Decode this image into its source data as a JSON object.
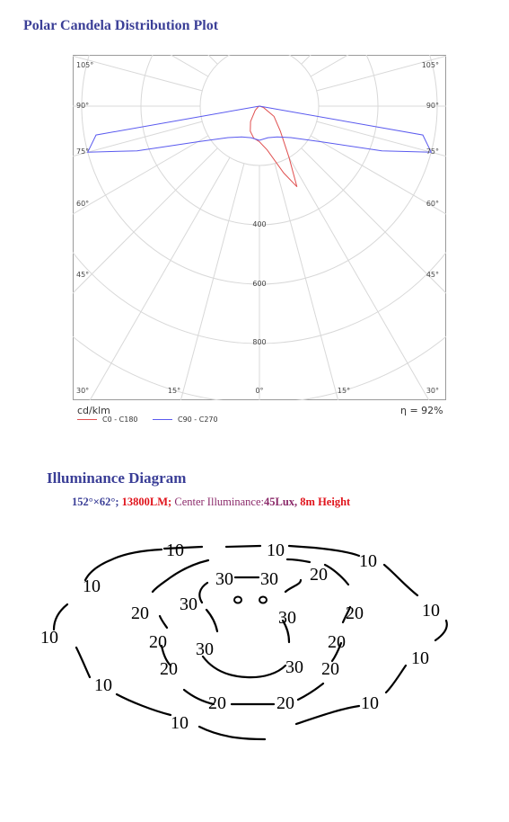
{
  "polar_title": "Polar Candela Distribution Plot",
  "illuminance_title": "Illuminance Diagram",
  "spec": {
    "beam": "152°×62°;",
    "lumen": "13800LM;",
    "center_label": "Center Illuminance:",
    "center_value": "45Lux,",
    "height": "8m Height"
  },
  "chart_data": {
    "type": "polar",
    "unit_label": "cd/klm",
    "efficiency": "η = 92%",
    "radial_ticks": [
      "400",
      "600",
      "800"
    ],
    "angle_labels_left": [
      "105°",
      "90°",
      "75°",
      "60°",
      "45°",
      "30°"
    ],
    "angle_labels_right": [
      "105°",
      "90°",
      "75°",
      "60°",
      "45°",
      "30°"
    ],
    "angle_labels_bottom": [
      "15°",
      "0°",
      "15°"
    ],
    "series": [
      {
        "name": "C0 - C180",
        "color": "#e05050",
        "points": [
          [
            -70,
            0
          ],
          [
            -60,
            5
          ],
          [
            -45,
            20
          ],
          [
            -30,
            60
          ],
          [
            -20,
            90
          ],
          [
            -10,
            110
          ],
          [
            0,
            120
          ],
          [
            10,
            150
          ],
          [
            20,
            240
          ],
          [
            25,
            300
          ],
          [
            30,
            200
          ],
          [
            40,
            110
          ],
          [
            55,
            60
          ],
          [
            70,
            15
          ],
          [
            85,
            2
          ],
          [
            90,
            0
          ]
        ]
      },
      {
        "name": "C90 - C270",
        "color": "#5a5aef",
        "points": [
          [
            -90,
            0
          ],
          [
            -80,
            560
          ],
          [
            -75,
            600
          ],
          [
            -70,
            440
          ],
          [
            -60,
            240
          ],
          [
            -45,
            150
          ],
          [
            -30,
            120
          ],
          [
            -15,
            110
          ],
          [
            0,
            115
          ],
          [
            15,
            110
          ],
          [
            30,
            120
          ],
          [
            45,
            150
          ],
          [
            60,
            240
          ],
          [
            70,
            440
          ],
          [
            75,
            600
          ],
          [
            80,
            560
          ],
          [
            90,
            0
          ]
        ]
      }
    ]
  },
  "isolux": {
    "contour_levels": [
      10,
      20,
      30
    ],
    "labels": [
      {
        "text": "10",
        "ring": "outer"
      },
      {
        "text": "10",
        "ring": "outer"
      },
      {
        "text": "10",
        "ring": "outer"
      },
      {
        "text": "10",
        "ring": "outer"
      },
      {
        "text": "10",
        "ring": "outer"
      },
      {
        "text": "10",
        "ring": "outer"
      },
      {
        "text": "10",
        "ring": "outer"
      },
      {
        "text": "10",
        "ring": "outer"
      },
      {
        "text": "10",
        "ring": "outer"
      },
      {
        "text": "10",
        "ring": "outer"
      },
      {
        "text": "20",
        "ring": "middle"
      },
      {
        "text": "20",
        "ring": "middle"
      },
      {
        "text": "20",
        "ring": "middle"
      },
      {
        "text": "20",
        "ring": "middle"
      },
      {
        "text": "20",
        "ring": "middle"
      },
      {
        "text": "20",
        "ring": "middle"
      },
      {
        "text": "20",
        "ring": "middle"
      },
      {
        "text": "20",
        "ring": "middle"
      },
      {
        "text": "20",
        "ring": "middle"
      },
      {
        "text": "30",
        "ring": "inner"
      },
      {
        "text": "30",
        "ring": "inner"
      },
      {
        "text": "30",
        "ring": "inner"
      },
      {
        "text": "30",
        "ring": "inner"
      },
      {
        "text": "30",
        "ring": "inner"
      },
      {
        "text": "30",
        "ring": "inner"
      }
    ]
  }
}
